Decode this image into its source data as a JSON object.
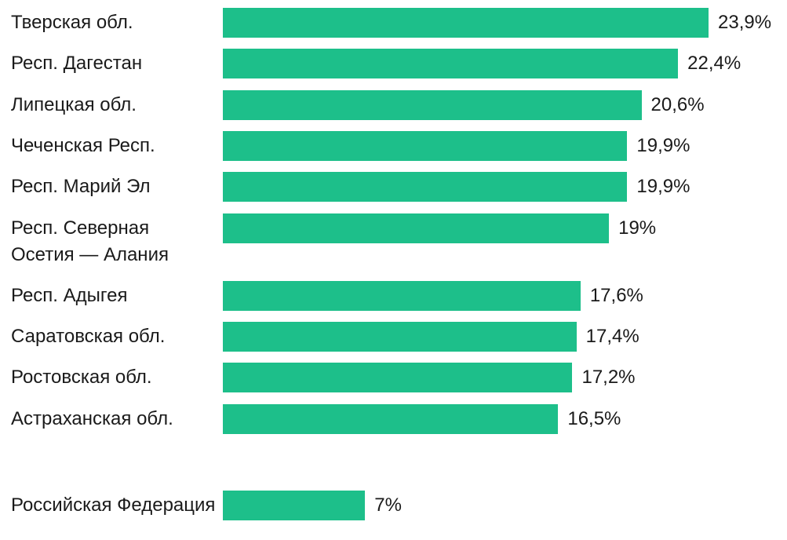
{
  "chart_data": {
    "type": "bar",
    "orientation": "horizontal",
    "categories": [
      "Тверская обл.",
      "Респ. Дагестан",
      "Липецкая обл.",
      "Чеченская Респ.",
      "Респ. Марий Эл",
      "Респ. Северная Осетия — Алания",
      "Респ. Адыгея",
      "Саратовская обл.",
      "Ростовская обл.",
      "Астраханская обл.",
      "Российская Федерация"
    ],
    "values": [
      23.9,
      22.4,
      20.6,
      19.9,
      19.9,
      19,
      17.6,
      17.4,
      17.2,
      16.5,
      7
    ],
    "value_labels": [
      "23,9%",
      "22,4%",
      "20,6%",
      "19,9%",
      "19,9%",
      "19%",
      "17,6%",
      "17,4%",
      "17,2%",
      "16,5%",
      "7%"
    ],
    "color": "#1dbf8a"
  }
}
